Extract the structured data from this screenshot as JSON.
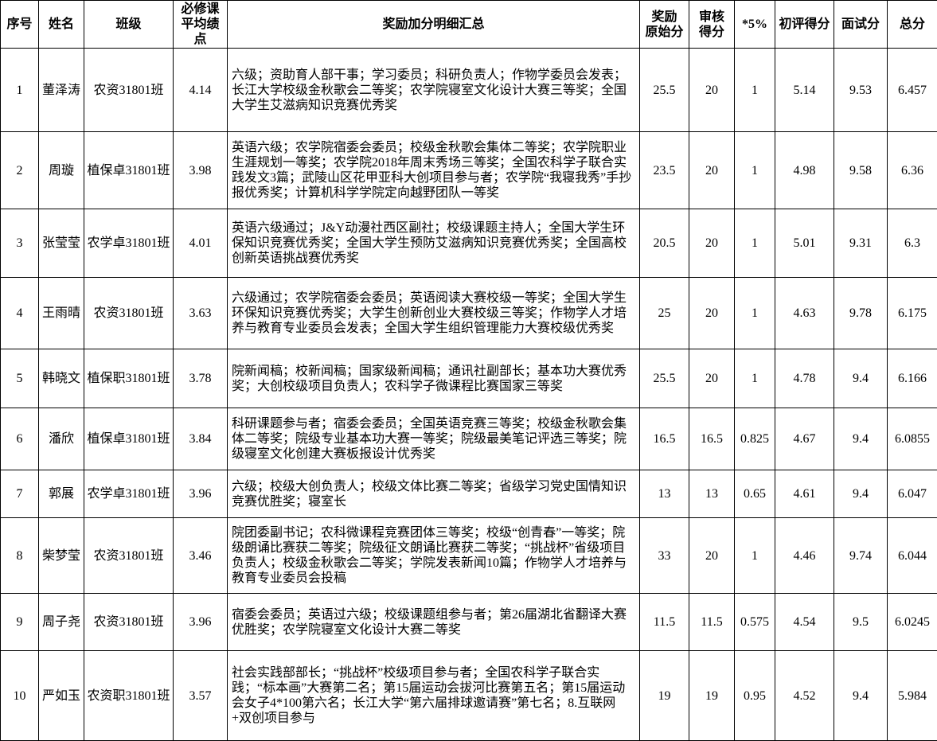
{
  "colors": {
    "background": "#ffffff",
    "grid_border": "#000000",
    "text": "#000000"
  },
  "table": {
    "headers": [
      "序号",
      "姓名",
      "班级",
      "必修课\n平均绩\n点",
      "奖励加分明细汇总",
      "奖励\n原始分",
      "审核\n得分",
      "*5%",
      "初评得分",
      "面试分",
      "总分"
    ],
    "rows": [
      {
        "no": "1",
        "name": "董泽涛",
        "class": "农资31801班",
        "gpa": "4.14",
        "details": "六级；资助育人部干事；学习委员；科研负责人；作物学委员会发表；长江大学校级金秋歌会二等奖；农学院寝室文化设计大赛三等奖；全国大学生艾滋病知识竞赛优秀奖",
        "raw": "25.5",
        "audit": "20",
        "pct": "1",
        "prelim": "5.14",
        "interview": "9.53",
        "total": "6.457"
      },
      {
        "no": "2",
        "name": "周璇",
        "class": "植保卓31801班",
        "gpa": "3.98",
        "details": "英语六级；农学院宿委会委员；校级金秋歌会集体二等奖；农学院职业生涯规划一等奖；农学院2018年周末秀场三等奖；全国农科学子联合实践发文3篇；武陵山区花甲亚科大创项目参与者；农学院“我寝我秀”手抄报优秀奖；计算机科学学院定向越野团队一等奖",
        "raw": "23.5",
        "audit": "20",
        "pct": "1",
        "prelim": "4.98",
        "interview": "9.58",
        "total": "6.36"
      },
      {
        "no": "3",
        "name": "张莹莹",
        "class": "农学卓31801班",
        "gpa": "4.01",
        "details": "英语六级通过；J&Y动漫社西区副社；校级课题主持人；全国大学生环保知识竞赛优秀奖；全国大学生预防艾滋病知识竞赛优秀奖；全国高校创新英语挑战赛优秀奖",
        "raw": "20.5",
        "audit": "20",
        "pct": "1",
        "prelim": "5.01",
        "interview": "9.31",
        "total": "6.3"
      },
      {
        "no": "4",
        "name": "王雨晴",
        "class": "农资31801班",
        "gpa": "3.63",
        "details": "六级通过；农学院宿委会委员；英语阅读大赛校级一等奖；全国大学生环保知识竞赛优秀奖；大学生创新创业大赛校级三等奖；作物学人才培养与教育专业委员会发表；全国大学生组织管理能力大赛校级优秀奖",
        "raw": "25",
        "audit": "20",
        "pct": "1",
        "prelim": "4.63",
        "interview": "9.78",
        "total": "6.175"
      },
      {
        "no": "5",
        "name": "韩晓文",
        "class": "植保职31801班",
        "gpa": "3.78",
        "details": "院新闻稿；校新闻稿；国家级新闻稿；通讯社副部长；基本功大赛优秀奖；大创校级项目负责人；农科学子微课程比赛国家三等奖",
        "raw": "25.5",
        "audit": "20",
        "pct": "1",
        "prelim": "4.78",
        "interview": "9.4",
        "total": "6.166"
      },
      {
        "no": "6",
        "name": "潘欣",
        "class": "植保卓31801班",
        "gpa": "3.84",
        "details": "科研课题参与者；宿委会委员；全国英语竞赛三等奖；校级金秋歌会集体二等奖；院级专业基本功大赛一等奖；院级最美笔记评选三等奖；院级寝室文化创建大赛板报设计优秀奖",
        "raw": "16.5",
        "audit": "16.5",
        "pct": "0.825",
        "prelim": "4.67",
        "interview": "9.4",
        "total": "6.0855"
      },
      {
        "no": "7",
        "name": "郭展",
        "class": "农学卓31801班",
        "gpa": "3.96",
        "details": "六级；校级大创负责人；校级文体比赛二等奖；省级学习党史国情知识竞赛优胜奖；寝室长",
        "raw": "13",
        "audit": "13",
        "pct": "0.65",
        "prelim": "4.61",
        "interview": "9.4",
        "total": "6.047"
      },
      {
        "no": "8",
        "name": "柴梦莹",
        "class": "农资31801班",
        "gpa": "3.46",
        "details": "院团委副书记；农科微课程竞赛团体三等奖；校级“创青春”一等奖；院级朗诵比赛获二等奖；院级征文朗诵比赛获二等奖；“挑战杯”省级项目负责人；校级金秋歌会二等奖；学院发表新闻10篇；作物学人才培养与教育专业委员会投稿",
        "raw": "33",
        "audit": "20",
        "pct": "1",
        "prelim": "4.46",
        "interview": "9.74",
        "total": "6.044"
      },
      {
        "no": "9",
        "name": "周子尧",
        "class": "农资31801班",
        "gpa": "3.96",
        "details": "宿委会委员；英语过六级；校级课题组参与者；第26届湖北省翻译大赛优胜奖；农学院寝室文化设计大赛二等奖",
        "raw": "11.5",
        "audit": "11.5",
        "pct": "0.575",
        "prelim": "4.54",
        "interview": "9.5",
        "total": "6.0245"
      },
      {
        "no": "10",
        "name": "严如玉",
        "class": "农资职31801班",
        "gpa": "3.57",
        "details": "社会实践部部长；“挑战杯”校级项目参与者；全国农科学子联合实践；“标本画”大赛第二名；第15届运动会拔河比赛第五名；第15届运动会女子4*100第六名；长江大学“第六届排球邀请赛”第七名；8.互联网+双创项目参与",
        "raw": "19",
        "audit": "19",
        "pct": "0.95",
        "prelim": "4.52",
        "interview": "9.4",
        "total": "5.984"
      }
    ]
  }
}
